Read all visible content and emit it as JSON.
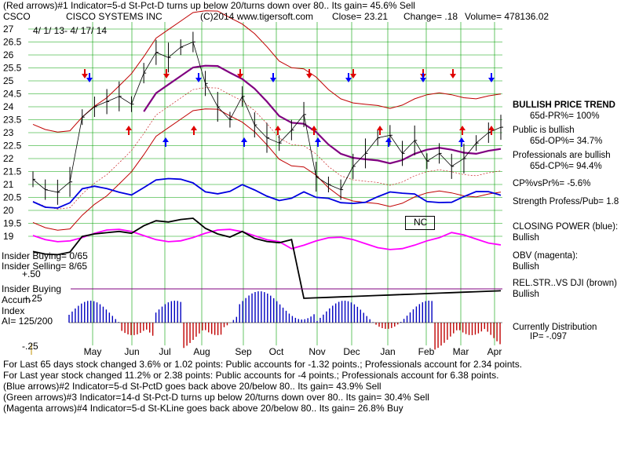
{
  "header": {
    "line1": "(Red arrows)#1 Indicator=5-d St-Pct-D turns up below 20/turns down over 80.. Its gain= 45.6% Sell",
    "line2": {
      "symbol": "CSCO",
      "company": "CISCO SYSTEMS INC",
      "source": "(C)2014 www.tigersoft.com",
      "close": "Close=   23.21",
      "change": "Change= .18",
      "volume": "Volume= 478136.02"
    },
    "date_range": "4/ 1/ 13- 4/ 17/ 14"
  },
  "right_panel": {
    "trend_title": "BULLISH PRICE TREND",
    "trend_pr": "65d-PR%= 100%",
    "public": "Public is bullish",
    "public_op": "65d-OP%= 34.7%",
    "pros": "Professionals are bullish",
    "pros_cp": "65d-CP%= 94.4%",
    "cp_vs_pr": "CP%vsPr%= -5.6%",
    "strength": "Strength Profess/Pub= 1.8",
    "closing_power": "CLOSING POWER (blue):",
    "closing_power_val": "Bullish",
    "obv": "OBV (magenta):",
    "obv_val": "Bullish",
    "relstr": "REL.STR..VS DJI (brown)",
    "relstr_val": "Bullish",
    "distribution": "Currently Distribution",
    "ip": "IP= -.097"
  },
  "left_panel": {
    "insider_buying": "Insider Buying= 0/65",
    "insider_selling": "Insider Selling= 8/65",
    "insider_buying2": "Insider Buying",
    "accum": "Accum",
    "index": "Index",
    "ai": "AI= 125/200",
    "lvl_50": "+.50",
    "lvl_25": "+.25",
    "lvl_m25": "-.25",
    "nc_label": "NC"
  },
  "footer": {
    "line1": "For Last 65 days stock changed  3.6% or  1.02 points:  Public accounts for -1.32 points.;  Professionals account for  2.34 points.",
    "line2": "For Last year stock changed  11.2% or  2.38 points:  Public accounts for -4 points.;  Professionals account for  6.38 points.",
    "line3": "(Blue arrows)#2 Indicator=5-d St-PctD goes back above 20/below 80.. Its gain= 43.9% Sell",
    "line4": "(Green arrows)#3 Indicator=14-d St-Pct-D turns up below 20/turns down over 80.. Its gain= 30.4% Sell",
    "line5": "(Magenta arrows)#4 Indicator=5-d St-KLine goes back above 20/below 80.. Its gain= 26.8% Buy"
  },
  "colors": {
    "price": "#000000",
    "bands": "#c00000",
    "ma": "#800080",
    "closing_power": "#0000e0",
    "obv": "#ff00ff",
    "relstr": "#000000",
    "accum_pos": "#0000c0",
    "accum_neg": "#c00000",
    "grid": "#00a000",
    "red_arrow": "#e00000",
    "blue_arrow": "#0000ff"
  },
  "chart_data": {
    "type": "line",
    "title": "CISCO SYSTEMS INC",
    "x_tick_labels": [
      "May",
      "Jun",
      "Jul",
      "Aug",
      "Sep",
      "Oct",
      "Nov",
      "Dec",
      "Jan",
      "Feb",
      "Mar",
      "Apr"
    ],
    "y_tick_labels": [
      "27",
      "26.5",
      "26",
      "25.5",
      "25",
      "24.5",
      "24",
      "23.5",
      "23",
      "22.5",
      "22",
      "21.5",
      "21",
      "20.5",
      "20",
      "19.5",
      "19"
    ],
    "ylim": [
      19,
      27
    ],
    "grid": true,
    "price_series": {
      "name": "CSCO",
      "x": [
        "Apr",
        "Apr",
        "May",
        "May",
        "May",
        "May",
        "Jun",
        "Jun",
        "Jun",
        "Jul",
        "Jul",
        "Jul",
        "Aug",
        "Aug",
        "Aug",
        "Sep",
        "Sep",
        "Sep",
        "Oct",
        "Oct",
        "Oct",
        "Oct",
        "Nov",
        "Nov",
        "Nov",
        "Dec",
        "Dec",
        "Dec",
        "Jan",
        "Jan",
        "Jan",
        "Feb",
        "Feb",
        "Feb",
        "Mar",
        "Mar",
        "Mar",
        "Apr",
        "Apr"
      ],
      "values": [
        21.2,
        20.8,
        20.7,
        21.1,
        23.6,
        24.0,
        24.2,
        24.4,
        24.1,
        25.3,
        26.1,
        25.9,
        26.3,
        26.5,
        24.9,
        24.0,
        23.5,
        24.4,
        23.3,
        22.8,
        22.6,
        23.1,
        23.7,
        21.3,
        21.0,
        20.8,
        21.7,
        22.2,
        22.8,
        22.9,
        22.2,
        22.7,
        21.9,
        22.2,
        21.7,
        22.0,
        22.6,
        23.0,
        23.21
      ]
    },
    "arrows": {
      "red": [
        "May",
        "Jun",
        "Jul",
        "Aug",
        "Sep",
        "Oct",
        "Nov",
        "Nov",
        "Dec",
        "Jan",
        "Feb",
        "Mar",
        "Mar",
        "Apr"
      ],
      "blue": [
        "May",
        "Jul",
        "Aug",
        "Sep",
        "Oct",
        "Nov",
        "Dec",
        "Jan",
        "Feb",
        "Mar",
        "Apr"
      ]
    }
  }
}
